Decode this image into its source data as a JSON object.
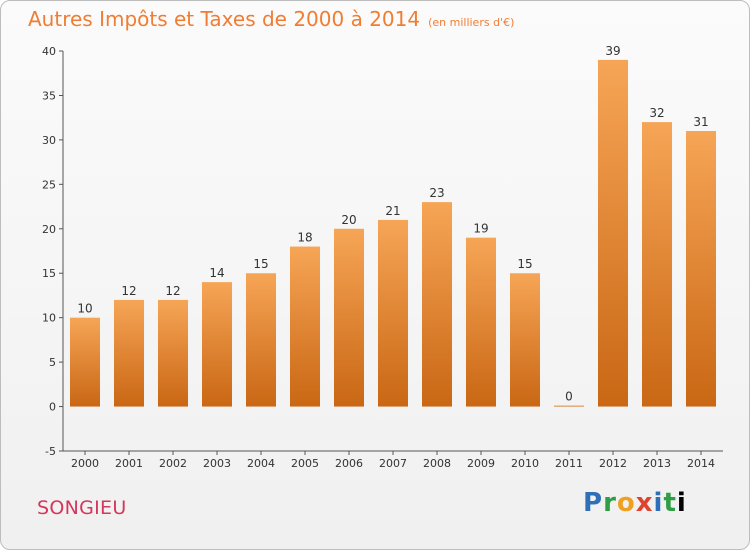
{
  "header": {
    "title": "Autres Impôts et Taxes de 2000 à 2014",
    "subtitle": "(en milliers d'€)"
  },
  "footer": {
    "commune": "SONGIEU",
    "logo": "Proxiti"
  },
  "colors": {
    "bar_top": "#f6a556",
    "bar_bottom": "#c96714",
    "title": "#f07d33",
    "commune": "#d4375c"
  },
  "chart_data": {
    "type": "bar",
    "title": "Autres Impôts et Taxes de 2000 à 2014",
    "subtitle": "(en milliers d'€)",
    "categories": [
      "2000",
      "2001",
      "2002",
      "2003",
      "2004",
      "2005",
      "2006",
      "2007",
      "2008",
      "2009",
      "2010",
      "2011",
      "2012",
      "2013",
      "2014"
    ],
    "values": [
      10,
      12,
      12,
      14,
      15,
      18,
      20,
      21,
      23,
      19,
      15,
      0,
      39,
      32,
      31
    ],
    "ylim": [
      -5,
      40
    ],
    "yticks": [
      -5,
      0,
      5,
      10,
      15,
      20,
      25,
      30,
      35,
      40
    ],
    "grid": false,
    "legend": "none",
    "xlabel": "",
    "ylabel": ""
  }
}
